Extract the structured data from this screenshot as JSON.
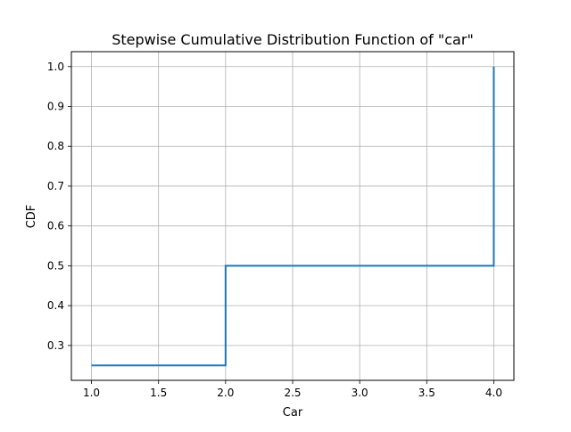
{
  "chart_data": {
    "type": "line",
    "title": "Stepwise Cumulative Distribution Function of \"car\"",
    "xlabel": "Car",
    "ylabel": "CDF",
    "xlim": [
      0.85,
      4.15
    ],
    "ylim": [
      0.2125,
      1.0375
    ],
    "x_ticks": [
      1.0,
      1.5,
      2.0,
      2.5,
      3.0,
      3.5,
      4.0
    ],
    "x_tick_labels": [
      "1.0",
      "1.5",
      "2.0",
      "2.5",
      "3.0",
      "3.5",
      "4.0"
    ],
    "y_ticks": [
      0.3,
      0.4,
      0.5,
      0.6,
      0.7,
      0.8,
      0.9,
      1.0
    ],
    "y_tick_labels": [
      "0.3",
      "0.4",
      "0.5",
      "0.6",
      "0.7",
      "0.8",
      "0.9",
      "1.0"
    ],
    "grid": true,
    "step": "post",
    "series": [
      {
        "x": [
          1.0,
          2.0,
          4.0
        ],
        "y": [
          0.25,
          0.5,
          1.0
        ],
        "color": "#1f77b4"
      }
    ]
  }
}
